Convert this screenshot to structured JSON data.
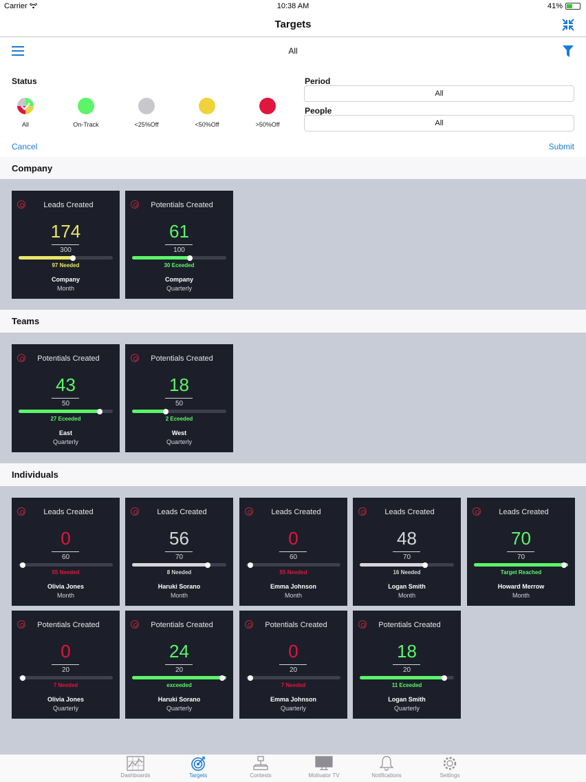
{
  "status_bar": {
    "carrier": "Carrier",
    "time": "10:38 AM",
    "battery": "41%"
  },
  "nav": {
    "title": "Targets"
  },
  "filter_bar": {
    "label": "All"
  },
  "filters": {
    "status_label": "Status",
    "status_options": [
      {
        "label": "All",
        "color": "checked"
      },
      {
        "label": "On-Track",
        "color": "#5cf56a"
      },
      {
        "label": "<25%Off",
        "color": "#c8c8cc"
      },
      {
        "label": "<50%Off",
        "color": "#f0d23a"
      },
      {
        "label": ">50%Off",
        "color": "#e0163e"
      }
    ],
    "period_label": "Period",
    "period_value": "All",
    "people_label": "People",
    "people_value": "All",
    "cancel": "Cancel",
    "submit": "Submit"
  },
  "sections": {
    "company": {
      "title": "Company",
      "cards": [
        {
          "metric": "Leads Created",
          "value": "174",
          "target": "300",
          "progress": 0.58,
          "note": "97 Needed",
          "who": "Company",
          "period": "Month",
          "color": "#e8e66a"
        },
        {
          "metric": "Potentials Created",
          "value": "61",
          "target": "100",
          "progress": 0.61,
          "note": "30 Eceeded",
          "who": "Company",
          "period": "Quarterly",
          "color": "#5cf56a"
        }
      ]
    },
    "teams": {
      "title": "Teams",
      "cards": [
        {
          "metric": "Potentials Created",
          "value": "43",
          "target": "50",
          "progress": 0.86,
          "note": "27 Eceeded",
          "who": "East",
          "period": "Quarterly",
          "color": "#5cf56a"
        },
        {
          "metric": "Potentials Created",
          "value": "18",
          "target": "50",
          "progress": 0.36,
          "note": "2 Eceeded",
          "who": "West",
          "period": "Quarterly",
          "color": "#5cf56a"
        }
      ]
    },
    "individuals": {
      "title": "Individuals",
      "cards": [
        {
          "metric": "Leads Created",
          "value": "0",
          "target": "60",
          "progress": 0.0,
          "note": "55 Needed",
          "who": "Olivia Jones",
          "period": "Month",
          "color": "#e0163e"
        },
        {
          "metric": "Leads Created",
          "value": "56",
          "target": "70",
          "progress": 0.8,
          "note": "8 Needed",
          "who": "Haruki Sorano",
          "period": "Month",
          "color": "#d6d6da"
        },
        {
          "metric": "Leads Created",
          "value": "0",
          "target": "60",
          "progress": 0.0,
          "note": "55 Needed",
          "who": "Emma Johnson",
          "period": "Month",
          "color": "#e0163e"
        },
        {
          "metric": "Leads Created",
          "value": "48",
          "target": "70",
          "progress": 0.69,
          "note": "16 Needed",
          "who": "Logan Smith",
          "period": "Month",
          "color": "#d6d6da"
        },
        {
          "metric": "Leads Created",
          "value": "70",
          "target": "70",
          "progress": 1.0,
          "note": "Target Reached",
          "who": "Howard Merrow",
          "period": "Month",
          "color": "#5cf56a"
        },
        {
          "metric": "Potentials Created",
          "value": "0",
          "target": "20",
          "progress": 0.0,
          "note": "7 Needed",
          "who": "Olivia Jones",
          "period": "Quarterly",
          "color": "#e0163e"
        },
        {
          "metric": "Potentials Created",
          "value": "24",
          "target": "20",
          "progress": 1.0,
          "note": "exceeded",
          "who": "Haruki Sorano",
          "period": "Quarterly",
          "color": "#5cf56a"
        },
        {
          "metric": "Potentials Created",
          "value": "0",
          "target": "20",
          "progress": 0.0,
          "note": "7 Needed",
          "who": "Emma Johnson",
          "period": "Quarterly",
          "color": "#e0163e"
        },
        {
          "metric": "Potentials Created",
          "value": "18",
          "target": "20",
          "progress": 0.9,
          "note": "11 Eceeded",
          "who": "Logan Smith",
          "period": "Quarterly",
          "color": "#5cf56a"
        }
      ]
    }
  },
  "tabs": [
    {
      "label": "Dashboards",
      "icon": "chart-icon",
      "active": false
    },
    {
      "label": "Targets",
      "icon": "target-icon",
      "active": true
    },
    {
      "label": "Contests",
      "icon": "trophy-icon",
      "active": false
    },
    {
      "label": "Motivator TV",
      "icon": "monitor-icon",
      "active": false
    },
    {
      "label": "Notifications",
      "icon": "bell-icon",
      "active": false
    },
    {
      "label": "Settings",
      "icon": "gear-icon",
      "active": false
    }
  ]
}
